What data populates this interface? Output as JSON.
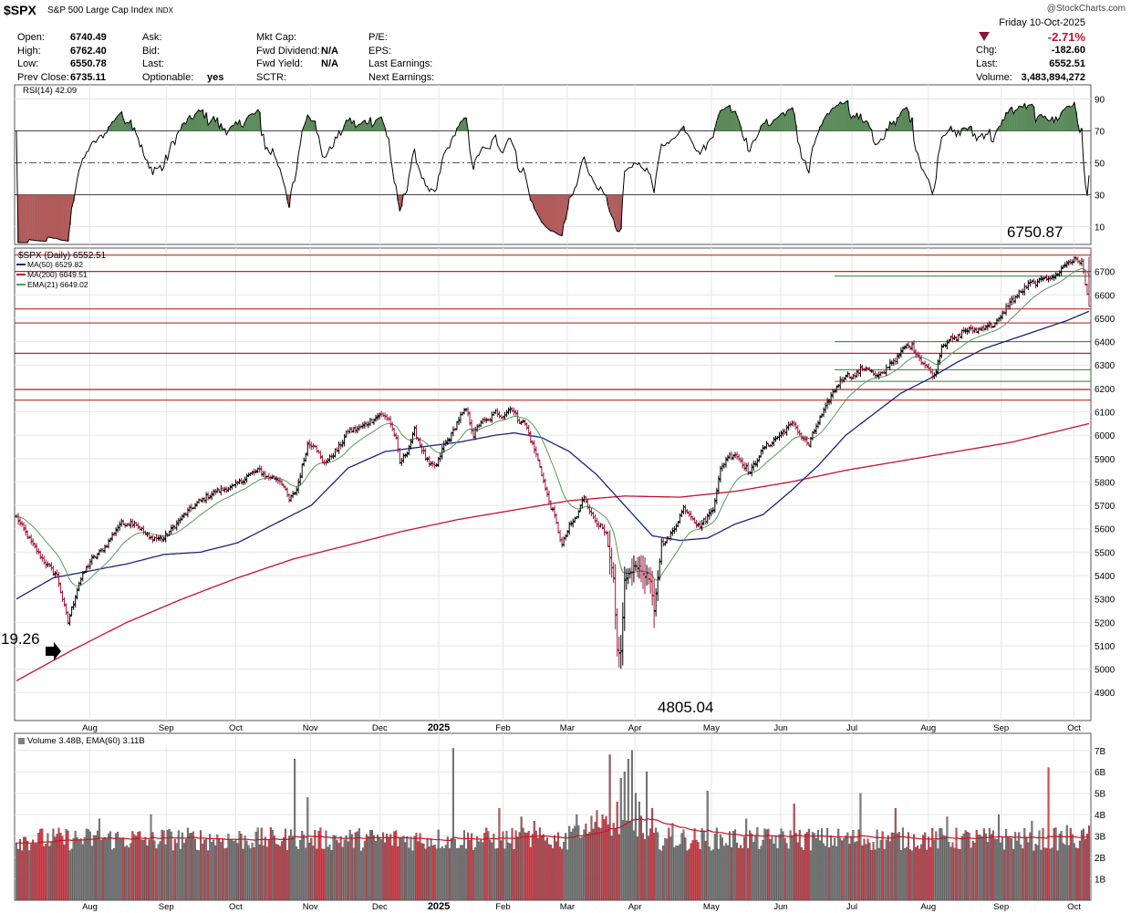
{
  "header": {
    "symbol": "$SPX",
    "name": "S&P 500 Large Cap Index",
    "exchange": "INDX",
    "watermark": "@StockCharts.com",
    "date": "Friday  10-Oct-2025",
    "change_pct": "-2.71%",
    "chg_label": "Chg:",
    "chg_value": "-182.60",
    "last_label": "Last:",
    "last_value": "6552.51",
    "volume_label": "Volume:",
    "volume_value": "3,483,894,272",
    "col1": [
      [
        "Open:",
        "6740.49"
      ],
      [
        "High:",
        "6762.40"
      ],
      [
        "Low:",
        "6550.78"
      ],
      [
        "Prev Close:",
        "6735.11"
      ]
    ],
    "col2": [
      [
        "Ask:",
        ""
      ],
      [
        "Bid:",
        ""
      ],
      [
        "Last:",
        ""
      ],
      [
        "Optionable:",
        "yes"
      ]
    ],
    "col3": [
      [
        "Mkt Cap:",
        ""
      ],
      [
        "Fwd Dividend:",
        "N/A"
      ],
      [
        "Fwd Yield:",
        "N/A"
      ],
      [
        "SCTR:",
        ""
      ]
    ],
    "col4": [
      "P/E:",
      "EPS:",
      "Last Earnings:",
      "Next Earnings:"
    ]
  },
  "colors": {
    "up": "#000000",
    "down": "#a0143c",
    "ma50": "#1a237e",
    "ma200": "#c8102e",
    "ema21": "#5b9a5b",
    "hline_red": "#c0282a",
    "hline_green": "#2e7d32",
    "vol_up": "#808080",
    "vol_down": "#d64550"
  },
  "rsi": {
    "legend": "RSI(14) 42.09",
    "levels": [
      "90",
      "70",
      "50",
      "30",
      "10"
    ]
  },
  "price": {
    "legend_symbol": "$SPX (Daily) 6552.51",
    "ma50_legend": "MA(50) 6529.82",
    "ma200_legend": "MA(200) 6049.51",
    "ema21_legend": "EMA(21) 6649.02",
    "annot_high": "6750.87",
    "annot_low": "4805.04",
    "annot_left": "19.26",
    "yticks": [
      "6700",
      "6600",
      "6500",
      "6400",
      "6300",
      "6200",
      "6100",
      "6000",
      "5900",
      "5800",
      "5700",
      "5600",
      "5500",
      "5400",
      "5300",
      "5200",
      "5100",
      "5000",
      "4900"
    ]
  },
  "volume": {
    "legend": "Volume 3.48B, EMA(60) 3.11B",
    "yticks": [
      "7B",
      "6B",
      "5B",
      "4B",
      "3B",
      "2B",
      "1B"
    ]
  },
  "xaxis": {
    "labels": [
      "Aug",
      "Sep",
      "Oct",
      "Nov",
      "Dec",
      "2025",
      "Feb",
      "Mar",
      "Apr",
      "May",
      "Jun",
      "Jul",
      "Aug",
      "Sep",
      "Oct"
    ]
  },
  "chart_data": {
    "type": "candlestick+line",
    "title": "$SPX S&P 500 Large Cap Index (Daily)",
    "ylim": [
      4850,
      6780
    ],
    "horizontal_levels_red": [
      6770,
      6700,
      6540,
      6480,
      6350,
      6195,
      6150
    ],
    "horizontal_levels_green": [
      6680,
      6400,
      6280,
      6230
    ],
    "keypoints": [
      [
        0,
        5650
      ],
      [
        8,
        5540
      ],
      [
        16,
        5450
      ],
      [
        22,
        5400
      ],
      [
        28,
        5200
      ],
      [
        34,
        5370
      ],
      [
        40,
        5460
      ],
      [
        48,
        5520
      ],
      [
        56,
        5620
      ],
      [
        64,
        5630
      ],
      [
        72,
        5560
      ],
      [
        80,
        5560
      ],
      [
        90,
        5650
      ],
      [
        98,
        5710
      ],
      [
        108,
        5760
      ],
      [
        118,
        5780
      ],
      [
        126,
        5830
      ],
      [
        132,
        5850
      ],
      [
        136,
        5820
      ],
      [
        140,
        5820
      ],
      [
        144,
        5800
      ],
      [
        148,
        5720
      ],
      [
        152,
        5770
      ],
      [
        158,
        5960
      ],
      [
        162,
        5960
      ],
      [
        166,
        5880
      ],
      [
        170,
        5900
      ],
      [
        176,
        5960
      ],
      [
        180,
        6020
      ],
      [
        186,
        6030
      ],
      [
        192,
        6060
      ],
      [
        197,
        6090
      ],
      [
        202,
        6070
      ],
      [
        206,
        5980
      ],
      [
        208,
        5880
      ],
      [
        212,
        5930
      ],
      [
        216,
        6020
      ],
      [
        220,
        5940
      ],
      [
        224,
        5870
      ],
      [
        228,
        5870
      ],
      [
        232,
        5960
      ],
      [
        236,
        6000
      ],
      [
        240,
        6070
      ],
      [
        244,
        6110
      ],
      [
        248,
        6000
      ],
      [
        252,
        6060
      ],
      [
        256,
        6060
      ],
      [
        260,
        6100
      ],
      [
        264,
        6080
      ],
      [
        268,
        6120
      ],
      [
        272,
        6070
      ],
      [
        276,
        6050
      ],
      [
        280,
        5960
      ],
      [
        284,
        5870
      ],
      [
        288,
        5740
      ],
      [
        292,
        5650
      ],
      [
        296,
        5530
      ],
      [
        300,
        5610
      ],
      [
        304,
        5650
      ],
      [
        308,
        5740
      ],
      [
        312,
        5660
      ],
      [
        316,
        5620
      ],
      [
        320,
        5570
      ],
      [
        322,
        5470
      ],
      [
        324,
        5380
      ],
      [
        326,
        5080
      ],
      [
        328,
        5070
      ],
      [
        330,
        5380
      ],
      [
        332,
        5400
      ],
      [
        336,
        5450
      ],
      [
        340,
        5410
      ],
      [
        342,
        5400
      ],
      [
        344,
        5370
      ],
      [
        346,
        5240
      ],
      [
        350,
        5540
      ],
      [
        354,
        5560
      ],
      [
        358,
        5620
      ],
      [
        362,
        5690
      ],
      [
        366,
        5660
      ],
      [
        370,
        5610
      ],
      [
        374,
        5640
      ],
      [
        378,
        5690
      ],
      [
        382,
        5850
      ],
      [
        386,
        5910
      ],
      [
        390,
        5920
      ],
      [
        394,
        5880
      ],
      [
        398,
        5840
      ],
      [
        402,
        5900
      ],
      [
        406,
        5950
      ],
      [
        410,
        5970
      ],
      [
        414,
        6000
      ],
      [
        418,
        6030
      ],
      [
        422,
        6050
      ],
      [
        426,
        5990
      ],
      [
        430,
        5960
      ],
      [
        434,
        6040
      ],
      [
        438,
        6100
      ],
      [
        442,
        6170
      ],
      [
        446,
        6220
      ],
      [
        450,
        6260
      ],
      [
        454,
        6250
      ],
      [
        458,
        6280
      ],
      [
        462,
        6290
      ],
      [
        466,
        6250
      ],
      [
        470,
        6260
      ],
      [
        474,
        6310
      ],
      [
        478,
        6330
      ],
      [
        482,
        6380
      ],
      [
        486,
        6380
      ],
      [
        490,
        6330
      ],
      [
        494,
        6290
      ],
      [
        498,
        6250
      ],
      [
        502,
        6380
      ],
      [
        506,
        6410
      ],
      [
        510,
        6410
      ],
      [
        514,
        6450
      ],
      [
        518,
        6450
      ],
      [
        522,
        6450
      ],
      [
        526,
        6470
      ],
      [
        530,
        6470
      ],
      [
        534,
        6500
      ],
      [
        538,
        6560
      ],
      [
        542,
        6590
      ],
      [
        546,
        6620
      ],
      [
        550,
        6650
      ],
      [
        554,
        6650
      ],
      [
        558,
        6680
      ],
      [
        562,
        6670
      ],
      [
        566,
        6700
      ],
      [
        570,
        6740
      ],
      [
        574,
        6750
      ],
      [
        578,
        6740
      ],
      [
        582,
        6552
      ]
    ],
    "ma200_points": [
      [
        0,
        4950
      ],
      [
        30,
        5080
      ],
      [
        60,
        5200
      ],
      [
        90,
        5300
      ],
      [
        120,
        5390
      ],
      [
        150,
        5470
      ],
      [
        180,
        5530
      ],
      [
        210,
        5590
      ],
      [
        240,
        5640
      ],
      [
        270,
        5680
      ],
      [
        300,
        5720
      ],
      [
        330,
        5740
      ],
      [
        360,
        5735
      ],
      [
        390,
        5760
      ],
      [
        420,
        5800
      ],
      [
        450,
        5850
      ],
      [
        480,
        5890
      ],
      [
        510,
        5930
      ],
      [
        540,
        5970
      ],
      [
        582,
        6049.51
      ]
    ],
    "ma50_points": [
      [
        0,
        5300
      ],
      [
        20,
        5390
      ],
      [
        40,
        5420
      ],
      [
        60,
        5450
      ],
      [
        80,
        5490
      ],
      [
        100,
        5500
      ],
      [
        120,
        5540
      ],
      [
        140,
        5620
      ],
      [
        160,
        5700
      ],
      [
        180,
        5860
      ],
      [
        200,
        5930
      ],
      [
        220,
        5950
      ],
      [
        240,
        5970
      ],
      [
        260,
        6000
      ],
      [
        270,
        6010
      ],
      [
        285,
        5990
      ],
      [
        300,
        5930
      ],
      [
        315,
        5830
      ],
      [
        330,
        5700
      ],
      [
        345,
        5570
      ],
      [
        360,
        5550
      ],
      [
        375,
        5560
      ],
      [
        390,
        5620
      ],
      [
        405,
        5660
      ],
      [
        420,
        5760
      ],
      [
        435,
        5870
      ],
      [
        450,
        6000
      ],
      [
        465,
        6090
      ],
      [
        480,
        6180
      ],
      [
        495,
        6240
      ],
      [
        510,
        6310
      ],
      [
        525,
        6370
      ],
      [
        540,
        6410
      ],
      [
        555,
        6450
      ],
      [
        570,
        6490
      ],
      [
        582,
        6529.82
      ]
    ],
    "volume_values_billions": "~2.8 typical, peaks 7.1 (Dec), 6.9 (Apr), 6.6 (Apr), 6.8 (Mar), 6.2 (Sep)"
  }
}
